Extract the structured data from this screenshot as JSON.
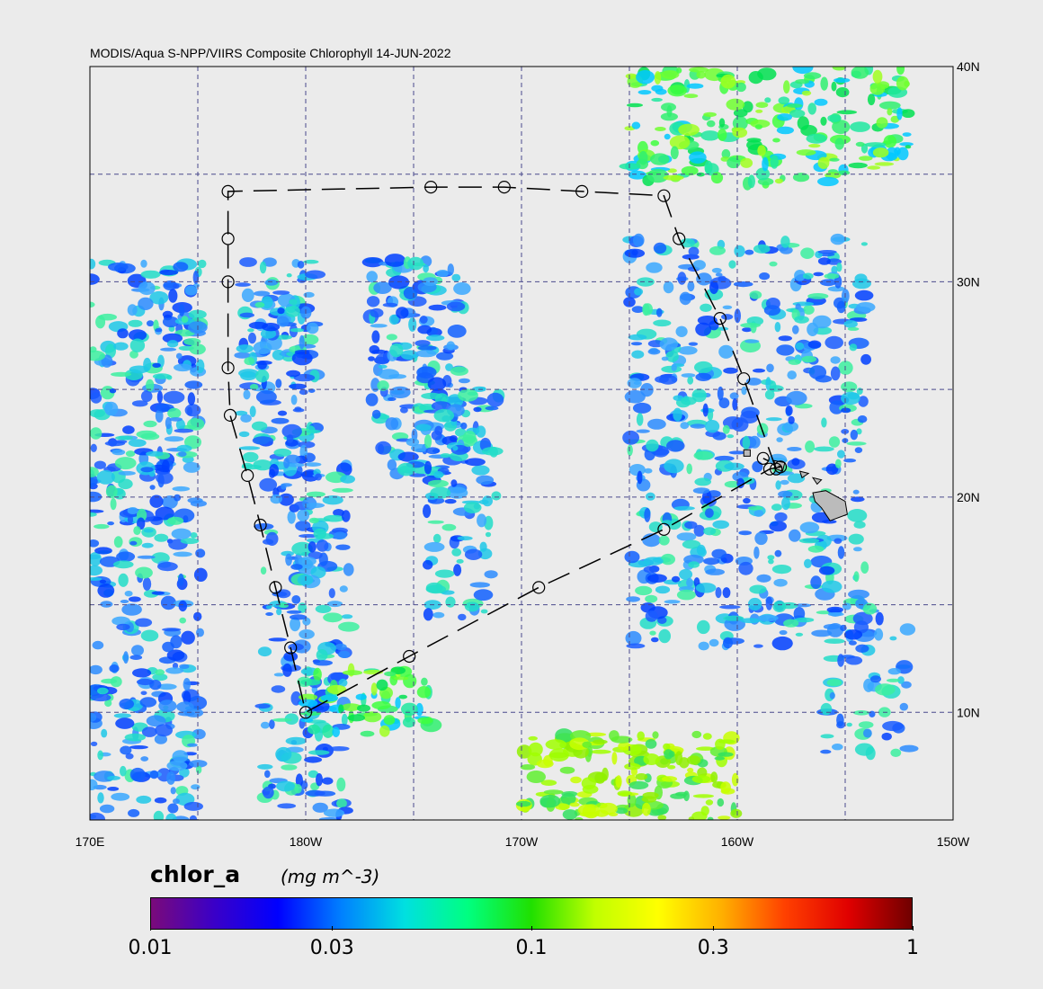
{
  "title": "MODIS/Aqua S-NPP/VIIRS Composite Chlorophyll 14-JUN-2022",
  "map": {
    "lon_range": [
      170,
      210
    ],
    "lat_range": [
      5,
      40
    ],
    "lon_ticks": [
      {
        "lon": 170,
        "label": "170E"
      },
      {
        "lon": 180,
        "label": "180W"
      },
      {
        "lon": 190,
        "label": "170W"
      },
      {
        "lon": 200,
        "label": "160W"
      },
      {
        "lon": 210,
        "label": "150W"
      }
    ],
    "lat_ticks": [
      {
        "lat": 40,
        "label": "40N"
      },
      {
        "lat": 30,
        "label": "30N"
      },
      {
        "lat": 20,
        "label": "20N"
      },
      {
        "lat": 10,
        "label": "10N"
      }
    ],
    "grid_lons": [
      175,
      180,
      185,
      190,
      195,
      200,
      205
    ],
    "grid_lats": [
      35,
      30,
      25,
      20,
      15,
      10
    ],
    "grid_color": "#4a4a8c",
    "land_color": "#bbbbbb",
    "track_stations": [
      [
        201.8,
        21.3
      ],
      [
        200.3,
        25.5
      ],
      [
        199.2,
        28.3
      ],
      [
        197.3,
        32.0
      ],
      [
        196.6,
        34.0
      ],
      [
        192.8,
        34.2
      ],
      [
        189.2,
        34.4
      ],
      [
        185.8,
        34.4
      ],
      [
        176.4,
        34.2
      ],
      [
        176.4,
        32.0
      ],
      [
        176.4,
        30.0
      ],
      [
        176.4,
        26.0
      ],
      [
        176.5,
        23.8
      ],
      [
        177.3,
        21.0
      ],
      [
        177.9,
        18.7
      ],
      [
        178.6,
        15.8
      ],
      [
        179.3,
        13.0
      ],
      [
        180.0,
        10.0
      ],
      [
        184.8,
        12.6
      ],
      [
        190.8,
        15.8
      ],
      [
        196.6,
        18.5
      ],
      [
        201.5,
        21.3
      ],
      [
        202.0,
        21.4
      ],
      [
        201.2,
        21.8
      ]
    ],
    "islands": [
      [
        [
          203.5,
          20.2
        ],
        [
          204.1,
          20.3
        ],
        [
          205.0,
          19.8
        ],
        [
          205.1,
          19.2
        ],
        [
          204.3,
          18.9
        ],
        [
          203.9,
          19.5
        ],
        [
          203.6,
          19.8
        ]
      ],
      [
        [
          201.7,
          21.7
        ],
        [
          202.2,
          21.6
        ],
        [
          202.1,
          21.2
        ],
        [
          201.8,
          21.3
        ]
      ],
      [
        [
          200.3,
          22.2
        ],
        [
          200.6,
          22.2
        ],
        [
          200.6,
          21.9
        ],
        [
          200.3,
          21.9
        ]
      ],
      [
        [
          202.9,
          21.2
        ],
        [
          203.3,
          21.1
        ],
        [
          203.0,
          20.9
        ]
      ],
      [
        [
          203.5,
          20.9
        ],
        [
          203.9,
          20.8
        ],
        [
          203.7,
          20.6
        ]
      ]
    ]
  },
  "colorbar": {
    "variable": "chlor_a",
    "units": "(mg m^-3)",
    "scale": "log",
    "range": [
      0.01,
      1
    ],
    "ticks": [
      {
        "value": 0.01,
        "label": "0.01"
      },
      {
        "value": 0.03,
        "label": "0.03"
      },
      {
        "value": 0.1,
        "label": "0.1"
      },
      {
        "value": 0.3,
        "label": "0.3"
      },
      {
        "value": 1,
        "label": "1"
      }
    ],
    "colors": [
      "#7a0a7a",
      "#3a00c8",
      "#0000ff",
      "#0080ff",
      "#00e0e0",
      "#00ff80",
      "#20e000",
      "#c0ff00",
      "#ffff00",
      "#ffb000",
      "#ff4000",
      "#e00000",
      "#700000"
    ]
  }
}
